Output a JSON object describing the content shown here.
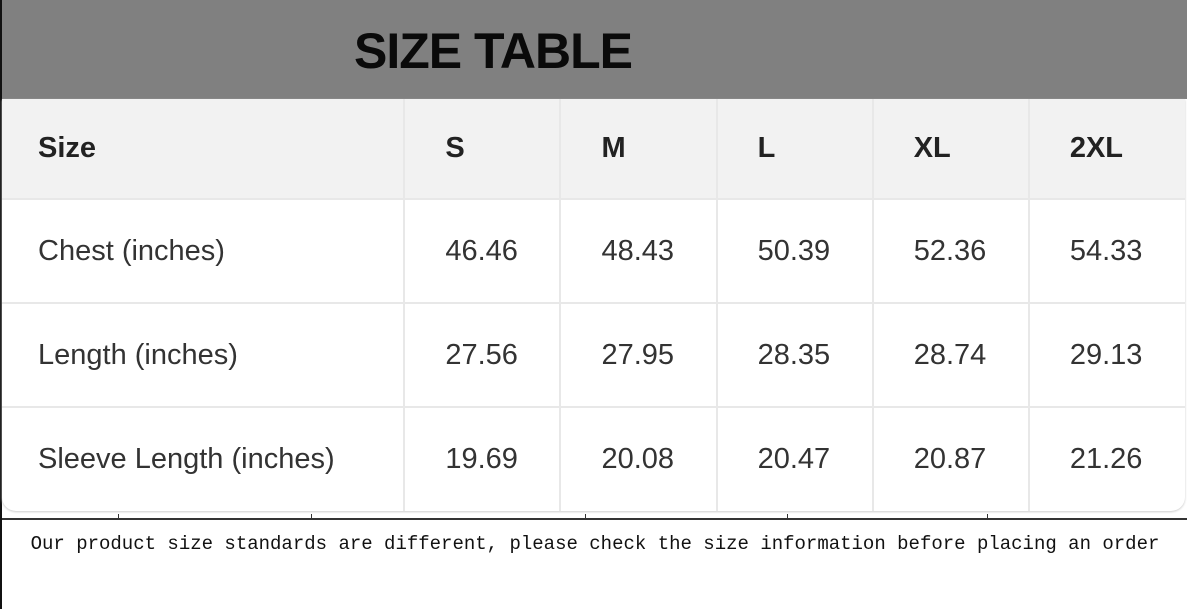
{
  "title": "SIZE TABLE",
  "table": {
    "headers": [
      "Size",
      "S",
      "M",
      "L",
      "XL",
      "2XL"
    ],
    "rows": [
      [
        "Chest (inches)",
        "46.46",
        "48.43",
        "50.39",
        "52.36",
        "54.33"
      ],
      [
        "Length (inches)",
        "27.56",
        "27.95",
        "28.35",
        "28.74",
        "29.13"
      ],
      [
        "Sleeve Length (inches)",
        "19.69",
        "20.08",
        "20.47",
        "20.87",
        "21.26"
      ]
    ]
  },
  "note": "Our product size standards are different, please check the size information before placing an order"
}
